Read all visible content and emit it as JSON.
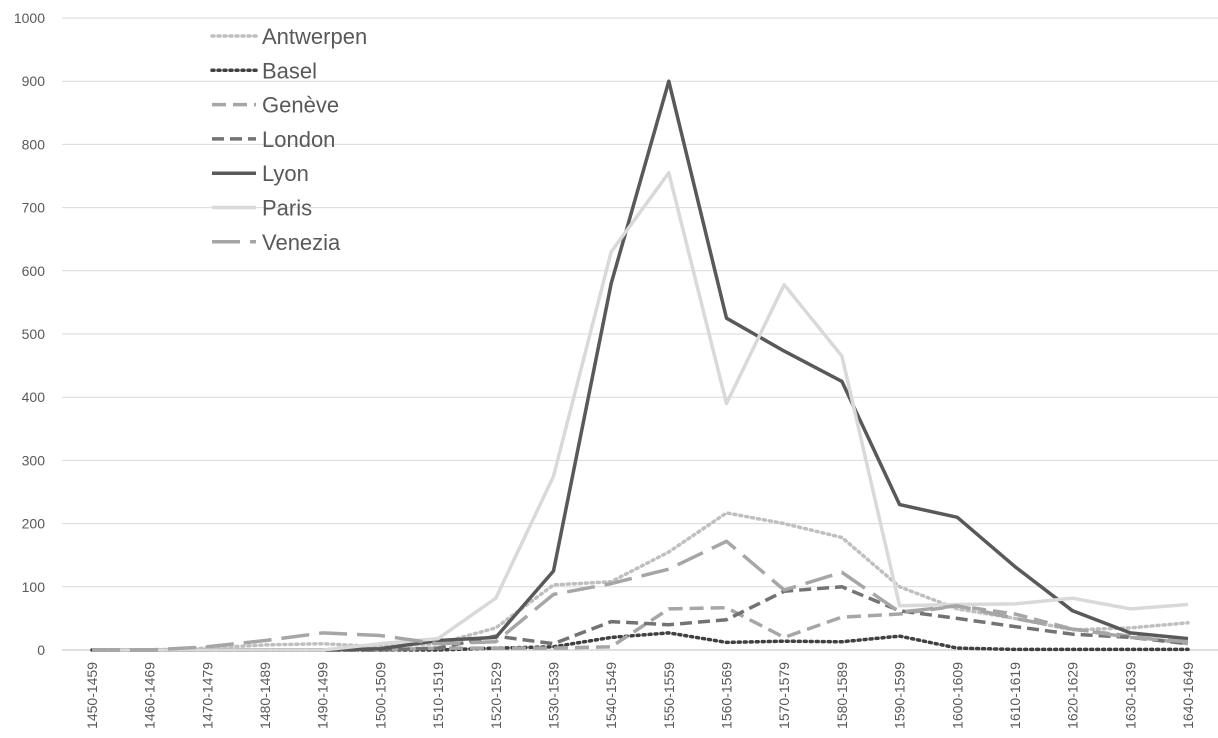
{
  "chart_data": {
    "type": "line",
    "title": "",
    "xlabel": "",
    "ylabel": "",
    "ylim": [
      0,
      1000
    ],
    "yticks": [
      "0",
      "100",
      "200",
      "300",
      "400",
      "500",
      "600",
      "700",
      "800",
      "900",
      "1000"
    ],
    "grid": true,
    "legend_position": "top-left",
    "categories": [
      "1450-1459",
      "1460-1469",
      "1470-1479",
      "1480-1489",
      "1490-1499",
      "1500-1509",
      "1510-1519",
      "1520-1529",
      "1530-1539",
      "1540-1549",
      "1550-1559",
      "1560-1569",
      "1570-1579",
      "1580-1589",
      "1590-1599",
      "1600-1609",
      "1610-1619",
      "1620-1629",
      "1630-1639",
      "1640-1649"
    ],
    "series": [
      {
        "name": "Antwerpen",
        "color": "#bfbfbf",
        "dash": "2,4",
        "width": 3.5,
        "values": [
          0,
          0,
          3,
          8,
          10,
          5,
          10,
          35,
          103,
          108,
          155,
          217,
          200,
          178,
          100,
          65,
          50,
          32,
          35,
          43
        ]
      },
      {
        "name": "Basel",
        "color": "#404040",
        "dash": "2,4",
        "width": 3.5,
        "values": [
          0,
          0,
          0,
          0,
          0,
          0,
          0,
          3,
          5,
          20,
          27,
          12,
          14,
          13,
          22,
          3,
          1,
          1,
          1,
          1
        ]
      },
      {
        "name": "Genève",
        "color": "#a6a6a6",
        "dash": "14,7",
        "width": 3.5,
        "values": [
          0,
          0,
          0,
          0,
          0,
          0,
          3,
          3,
          3,
          5,
          65,
          67,
          20,
          52,
          57,
          70,
          57,
          33,
          22,
          10
        ]
      },
      {
        "name": "London",
        "color": "#737373",
        "dash": "12,6",
        "width": 3.5,
        "values": [
          0,
          0,
          0,
          0,
          0,
          0,
          3,
          22,
          10,
          45,
          40,
          48,
          93,
          100,
          62,
          50,
          37,
          25,
          20,
          10
        ]
      },
      {
        "name": "Lyon",
        "color": "#595959",
        "dash": "",
        "width": 3.5,
        "values": [
          0,
          0,
          0,
          0,
          0,
          2,
          15,
          20,
          125,
          580,
          900,
          525,
          473,
          425,
          230,
          210,
          132,
          62,
          27,
          18
        ]
      },
      {
        "name": "Paris",
        "color": "#d9d9d9",
        "dash": "",
        "width": 3.5,
        "values": [
          0,
          0,
          0,
          0,
          0,
          10,
          18,
          82,
          275,
          630,
          755,
          390,
          578,
          465,
          70,
          72,
          73,
          82,
          65,
          72
        ]
      },
      {
        "name": "Venezia",
        "color": "#a6a6a6",
        "dash": "28,10",
        "width": 3.5,
        "values": [
          0,
          0,
          5,
          15,
          27,
          23,
          10,
          13,
          88,
          105,
          128,
          172,
          95,
          123,
          60,
          70,
          50,
          33,
          20,
          13
        ]
      }
    ]
  }
}
